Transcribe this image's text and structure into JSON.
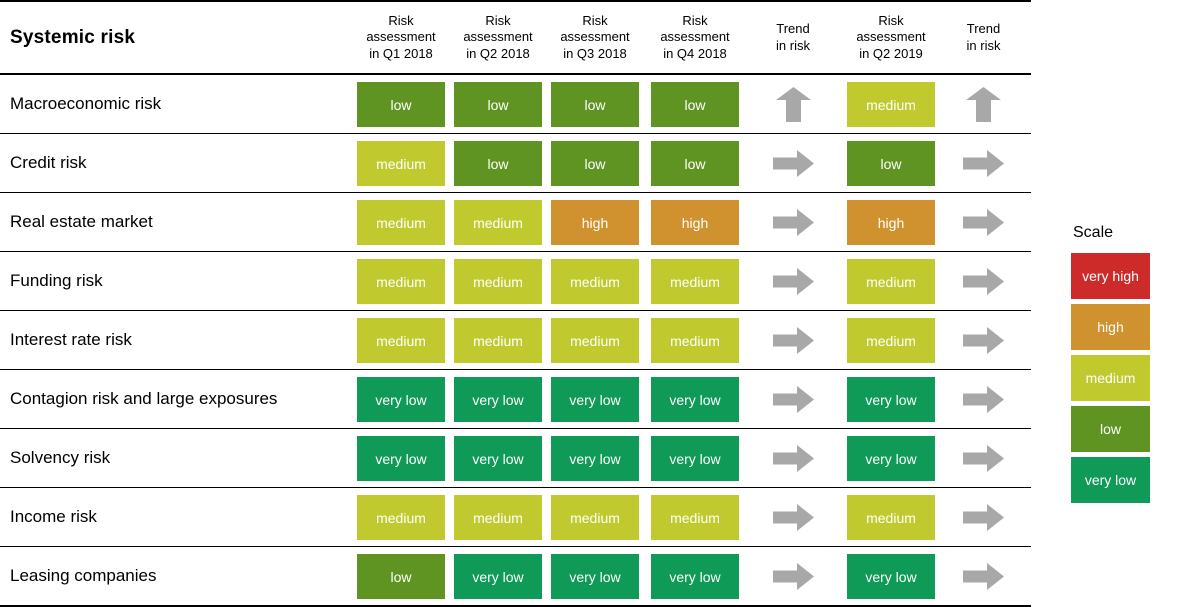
{
  "colors": {
    "very high": "#cd2a2a",
    "high": "#cf922e",
    "medium": "#c0ca2e",
    "low": "#5f9422",
    "very low": "#0f9a58",
    "arrow": "#a8a8a8"
  },
  "chart_data": {
    "type": "heatmap",
    "title": "Systemic risk",
    "columns": [
      {
        "label": "Risk assessment in Q1 2018",
        "lines": [
          "Risk",
          "assessment",
          "in Q1 2018"
        ],
        "kind": "risk"
      },
      {
        "label": "Risk assessment in Q2 2018",
        "lines": [
          "Risk",
          "assessment",
          "in Q2 2018"
        ],
        "kind": "risk"
      },
      {
        "label": "Risk assessment in Q3 2018",
        "lines": [
          "Risk",
          "assessment",
          "in Q3 2018"
        ],
        "kind": "risk"
      },
      {
        "label": "Risk assessment in Q4 2018",
        "lines": [
          "Risk",
          "assessment",
          "in Q4 2018"
        ],
        "kind": "risk"
      },
      {
        "label": "Trend in risk",
        "lines": [
          "Trend",
          "in risk"
        ],
        "kind": "trend"
      },
      {
        "label": "Risk assessment in Q2 2019",
        "lines": [
          "Risk",
          "assessment",
          "in Q2 2019"
        ],
        "kind": "risk"
      },
      {
        "label": "Trend in risk",
        "lines": [
          "Trend",
          "in risk"
        ],
        "kind": "trend"
      }
    ],
    "rows": [
      {
        "label": "Macroeconomic risk",
        "values": [
          "low",
          "low",
          "low",
          "low"
        ],
        "trend1": "up",
        "q2_2019": "medium",
        "trend2": "up"
      },
      {
        "label": "Credit risk",
        "values": [
          "medium",
          "low",
          "low",
          "low"
        ],
        "trend1": "right",
        "q2_2019": "low",
        "trend2": "right"
      },
      {
        "label": "Real estate market",
        "values": [
          "medium",
          "medium",
          "high",
          "high"
        ],
        "trend1": "right",
        "q2_2019": "high",
        "trend2": "right"
      },
      {
        "label": "Funding risk",
        "values": [
          "medium",
          "medium",
          "medium",
          "medium"
        ],
        "trend1": "right",
        "q2_2019": "medium",
        "trend2": "right"
      },
      {
        "label": "Interest rate risk",
        "values": [
          "medium",
          "medium",
          "medium",
          "medium"
        ],
        "trend1": "right",
        "q2_2019": "medium",
        "trend2": "right"
      },
      {
        "label": "Contagion risk and large exposures",
        "values": [
          "very low",
          "very low",
          "very low",
          "very low"
        ],
        "trend1": "right",
        "q2_2019": "very low",
        "trend2": "right"
      },
      {
        "label": "Solvency risk",
        "values": [
          "very low",
          "very low",
          "very low",
          "very low"
        ],
        "trend1": "right",
        "q2_2019": "very low",
        "trend2": "right"
      },
      {
        "label": "Income risk",
        "values": [
          "medium",
          "medium",
          "medium",
          "medium"
        ],
        "trend1": "right",
        "q2_2019": "medium",
        "trend2": "right"
      },
      {
        "label": "Leasing companies",
        "values": [
          "low",
          "very low",
          "very low",
          "very low"
        ],
        "trend1": "right",
        "q2_2019": "very low",
        "trend2": "right"
      }
    ],
    "legend": {
      "title": "Scale",
      "items": [
        "very high",
        "high",
        "medium",
        "low",
        "very low"
      ]
    }
  }
}
